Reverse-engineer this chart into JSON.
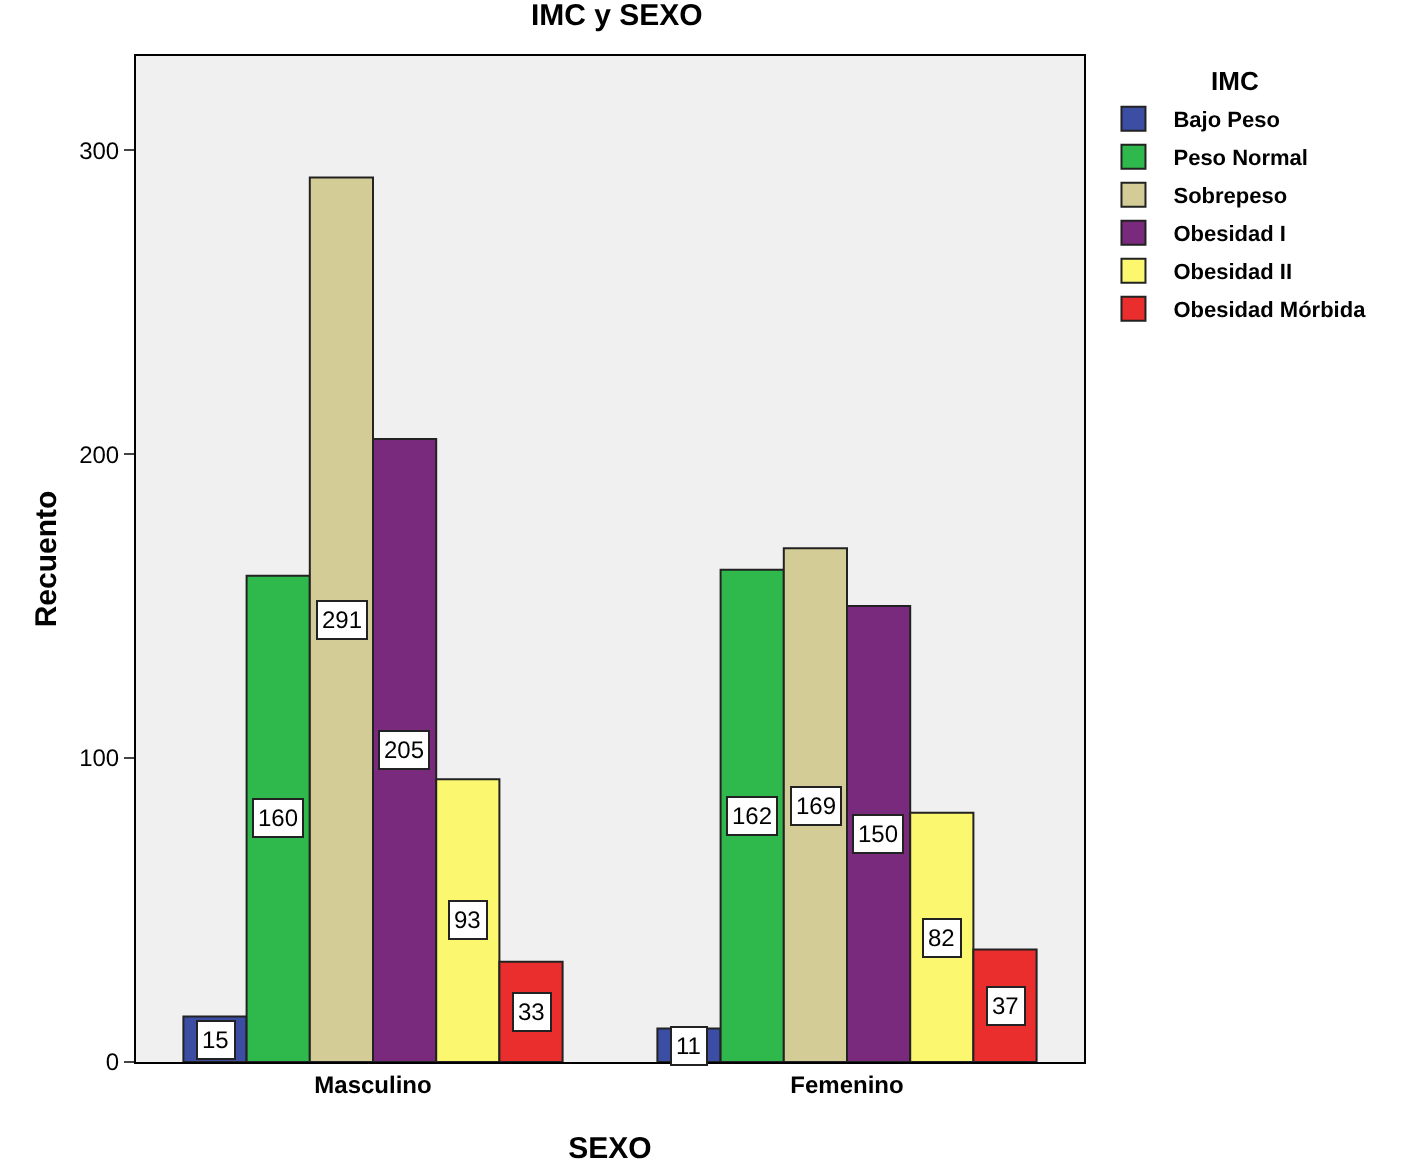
{
  "chart_data": {
    "type": "bar",
    "title": "IMC y SEXO",
    "xlabel": "SEXO",
    "ylabel": "Recuento",
    "legend_title": "IMC",
    "categories": [
      "Masculino",
      "Femenino"
    ],
    "series": [
      {
        "name": "Bajo Peso",
        "color": "#3b4ea3",
        "values": [
          15,
          11
        ]
      },
      {
        "name": "Peso Normal",
        "color": "#2fb84b",
        "values": [
          160,
          162
        ]
      },
      {
        "name": "Sobrepeso",
        "color": "#d4cc97",
        "values": [
          291,
          169
        ]
      },
      {
        "name": "Obesidad I",
        "color": "#7a2a7c",
        "values": [
          205,
          150
        ]
      },
      {
        "name": "Obesidad II",
        "color": "#fbf86f",
        "values": [
          93,
          82
        ]
      },
      {
        "name": "Obesidad Mórbida",
        "color": "#ea2d2d",
        "values": [
          33,
          37
        ]
      }
    ],
    "ylim": [
      0,
      331
    ],
    "yticks": [
      0,
      100,
      200,
      300
    ],
    "grid": false,
    "legend": "top right",
    "data_labels": true
  }
}
